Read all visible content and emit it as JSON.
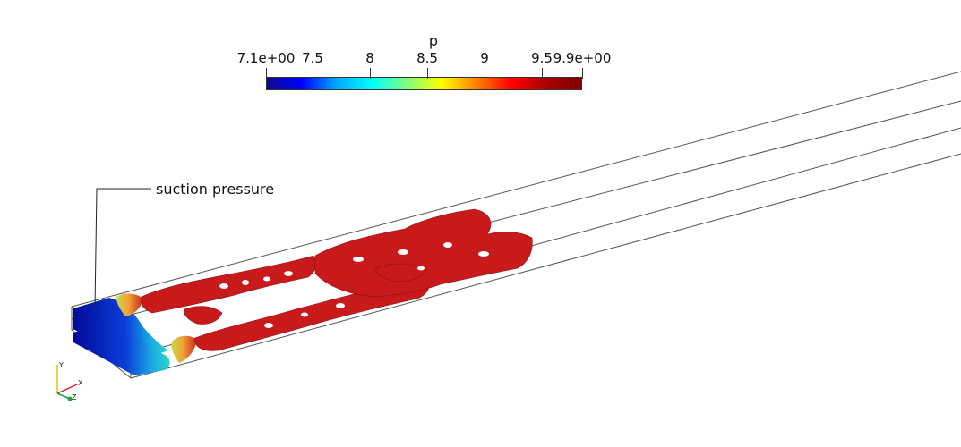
{
  "colorbar": {
    "title": "p",
    "ticks": [
      "7.1e+00",
      "7.5",
      "8",
      "8.5",
      "9",
      "9.5",
      "9.9e+00"
    ],
    "gradient": [
      "#0a0a8c",
      "#0000ff",
      "#00aaff",
      "#00ffff",
      "#7fff7f",
      "#ffff00",
      "#ff8000",
      "#ff0000",
      "#aa0000",
      "#800000"
    ]
  },
  "annotation": {
    "label": "suction pressure"
  },
  "axes_triad": {
    "x": "X",
    "y": "Y",
    "z": "Z"
  }
}
